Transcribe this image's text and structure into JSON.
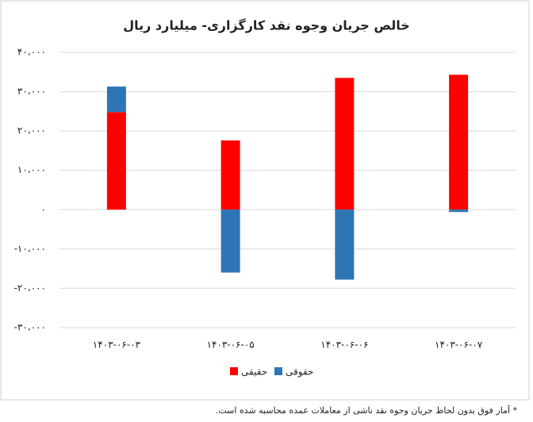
{
  "chart_data": {
    "type": "bar",
    "title": "خالص جریان وجوه نقد کارگزاری- میلیارد ریال",
    "categories": [
      "۱۴۰۳-۰۶-۰۳",
      "۱۴۰۳-۰۶-۰۵",
      "۱۴۰۳-۰۶-۰۶",
      "۱۴۰۳-۰۶-۰۷"
    ],
    "series": [
      {
        "name": "حقیقی",
        "color": "#ff0000",
        "values": [
          24800,
          17600,
          33500,
          34300
        ]
      },
      {
        "name": "حقوقی",
        "color": "#2e75b6",
        "values": [
          6500,
          -16000,
          -17800,
          -600
        ]
      }
    ],
    "ylim": [
      -30000,
      40000
    ],
    "yticks": [
      {
        "value": -30000,
        "label": "-۳۰،۰۰۰"
      },
      {
        "value": -20000,
        "label": "-۲۰،۰۰۰"
      },
      {
        "value": -10000,
        "label": "-۱۰،۰۰۰"
      },
      {
        "value": 0,
        "label": "۰"
      },
      {
        "value": 10000,
        "label": "۱۰،۰۰۰"
      },
      {
        "value": 20000,
        "label": "۲۰،۰۰۰"
      },
      {
        "value": 30000,
        "label": "۳۰،۰۰۰"
      },
      {
        "value": 40000,
        "label": "۴۰،۰۰۰"
      }
    ],
    "grid": true,
    "legend": "bottom",
    "note": "* آمار فوق بدون لحاظ جریان وجوه نقد ناشی از معاملات عمده محاسبه شده است."
  }
}
